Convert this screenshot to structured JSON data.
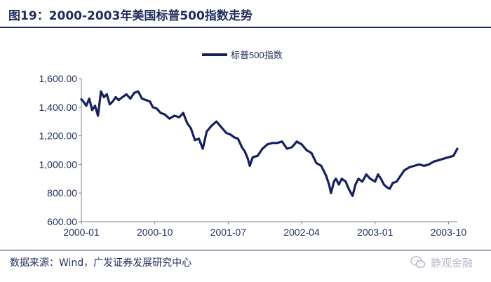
{
  "header": {
    "title": "图19：2000-2003年美国标普500指数走势"
  },
  "footer": {
    "source": "数据来源：Wind，广发证券发展研究中心",
    "watermark": "静观金融"
  },
  "colors": {
    "series": "#15215f",
    "text": "#1f2d5c",
    "axis": "#7f7f7f"
  },
  "chart_data": {
    "type": "line",
    "title": "",
    "xlabel": "",
    "ylabel": "",
    "ylim": [
      600,
      1600
    ],
    "yticks": [
      600,
      800,
      1000,
      1200,
      1400,
      1600
    ],
    "ytick_labels": [
      "600.00",
      "800.00",
      "1,000.00",
      "1,200.00",
      "1,400.00",
      "1,600.00"
    ],
    "xlim": [
      2000.0,
      2003.84
    ],
    "xticks": [
      2000.0,
      2000.75,
      2001.5,
      2002.25,
      2003.0,
      2003.75
    ],
    "xtick_labels": [
      "2000-01",
      "2000-10",
      "2001-07",
      "2002-04",
      "2003-01",
      "2003-10"
    ],
    "legend": {
      "position": "top-center"
    },
    "grid": false,
    "series": [
      {
        "name": "标普500指数",
        "x": [
          2000.0,
          2000.02,
          2000.05,
          2000.08,
          2000.11,
          2000.14,
          2000.17,
          2000.2,
          2000.23,
          2000.26,
          2000.29,
          2000.32,
          2000.35,
          2000.38,
          2000.42,
          2000.46,
          2000.5,
          2000.54,
          2000.58,
          2000.62,
          2000.66,
          2000.7,
          2000.73,
          2000.77,
          2000.81,
          2000.85,
          2000.9,
          2000.95,
          2001.0,
          2001.04,
          2001.08,
          2001.12,
          2001.16,
          2001.2,
          2001.24,
          2001.28,
          2001.33,
          2001.38,
          2001.43,
          2001.48,
          2001.52,
          2001.56,
          2001.6,
          2001.64,
          2001.67,
          2001.7,
          2001.72,
          2001.75,
          2001.8,
          2001.85,
          2001.9,
          2001.95,
          2002.0,
          2002.05,
          2002.1,
          2002.15,
          2002.2,
          2002.25,
          2002.3,
          2002.35,
          2002.4,
          2002.45,
          2002.5,
          2002.53,
          2002.55,
          2002.58,
          2002.6,
          2002.63,
          2002.66,
          2002.7,
          2002.73,
          2002.77,
          2002.8,
          2002.83,
          2002.87,
          2002.91,
          2002.95,
          2003.0,
          2003.03,
          2003.06,
          2003.09,
          2003.12,
          2003.15,
          2003.18,
          2003.22,
          2003.26,
          2003.3,
          2003.35,
          2003.4,
          2003.45,
          2003.5,
          2003.55,
          2003.6,
          2003.65,
          2003.7,
          2003.75,
          2003.8,
          2003.84
        ],
        "values": [
          1455,
          1440,
          1410,
          1460,
          1380,
          1410,
          1340,
          1510,
          1470,
          1490,
          1420,
          1440,
          1470,
          1450,
          1470,
          1490,
          1460,
          1500,
          1510,
          1460,
          1450,
          1440,
          1400,
          1390,
          1360,
          1350,
          1320,
          1340,
          1330,
          1360,
          1290,
          1250,
          1170,
          1180,
          1110,
          1230,
          1270,
          1300,
          1260,
          1220,
          1210,
          1190,
          1180,
          1120,
          1090,
          1040,
          990,
          1050,
          1060,
          1110,
          1140,
          1150,
          1150,
          1160,
          1110,
          1120,
          1160,
          1140,
          1100,
          1080,
          1010,
          990,
          920,
          860,
          800,
          880,
          900,
          860,
          900,
          880,
          830,
          780,
          860,
          900,
          880,
          930,
          900,
          880,
          930,
          900,
          860,
          840,
          830,
          870,
          880,
          920,
          960,
          980,
          990,
          1000,
          990,
          1000,
          1020,
          1030,
          1040,
          1050,
          1060,
          1110
        ]
      }
    ]
  }
}
